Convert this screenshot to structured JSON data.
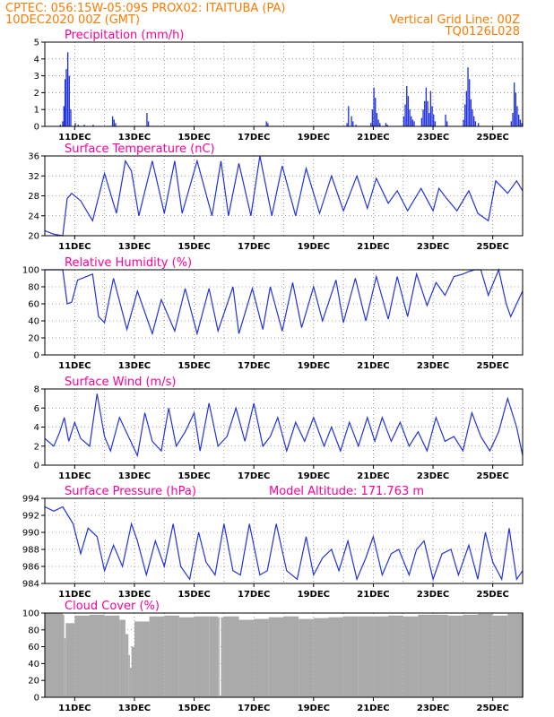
{
  "header": {
    "line1_left": "CPTEC:   056:15W-05:09S   PROX02: ITAITUBA (PA)",
    "line2_left": "10DEC2020 00Z (GMT)",
    "line2_right": "Vertical Grid Line: 00Z",
    "line3_right": "TQ0126L028"
  },
  "colors": {
    "header": "#ff7b00",
    "panel_title": "#ff0099",
    "series": "#2233dd",
    "cloud": "#aaaaaa",
    "grid": "#555555"
  },
  "x_tick_labels": [
    "11DEC",
    "13DEC",
    "15DEC",
    "17DEC",
    "19DEC",
    "21DEC",
    "23DEC",
    "25DEC"
  ],
  "chart_data": [
    {
      "type": "bar",
      "title": "Precipitation (mm/h)",
      "x_unit": "days since 10DEC2020 00Z",
      "ylim": [
        0,
        5
      ],
      "yticks": [
        0,
        1,
        2,
        3,
        4,
        5
      ],
      "x": [
        0.5,
        0.58,
        0.62,
        0.66,
        0.7,
        0.75,
        0.8,
        0.85,
        1.0,
        1.1,
        1.3,
        1.6,
        2.25,
        2.3,
        2.35,
        3.4,
        3.45,
        7.4,
        7.45,
        10.1,
        10.15,
        10.25,
        10.3,
        10.4,
        10.9,
        10.95,
        11.0,
        11.05,
        11.1,
        11.15,
        11.2,
        11.4,
        11.45,
        12.0,
        12.05,
        12.1,
        12.15,
        12.2,
        12.25,
        12.3,
        12.35,
        12.6,
        12.65,
        12.7,
        12.75,
        12.8,
        12.85,
        12.9,
        12.95,
        13.0,
        13.05,
        13.4,
        13.45,
        14.0,
        14.05,
        14.1,
        14.15,
        14.2,
        14.25,
        14.3,
        14.35,
        14.4,
        14.5,
        15.6,
        15.65,
        15.7,
        15.75,
        15.8,
        15.85,
        15.9,
        15.95
      ],
      "values": [
        0.1,
        0.3,
        1.2,
        2.8,
        3.4,
        4.4,
        3.0,
        1.0,
        0.2,
        0.1,
        0.1,
        0.1,
        0.6,
        0.4,
        0.2,
        0.8,
        0.3,
        0.3,
        0.2,
        0.2,
        1.2,
        0.6,
        0.3,
        0.1,
        0.2,
        1.0,
        2.3,
        1.7,
        0.8,
        0.4,
        0.2,
        0.2,
        0.1,
        0.6,
        1.3,
        2.4,
        1.8,
        1.0,
        0.6,
        0.4,
        0.3,
        0.5,
        1.0,
        1.5,
        2.3,
        1.5,
        0.8,
        2.1,
        1.2,
        0.7,
        0.3,
        0.7,
        0.3,
        0.4,
        1.3,
        2.1,
        3.5,
        2.8,
        1.6,
        1.0,
        0.6,
        0.3,
        0.2,
        0.3,
        0.8,
        2.6,
        2.0,
        1.2,
        0.7,
        0.4,
        0.2
      ]
    },
    {
      "type": "line",
      "title": "Surface Temperature (nC)",
      "x_unit": "days since 10DEC2020 00Z",
      "ylim": [
        20,
        36
      ],
      "yticks": [
        20,
        24,
        28,
        32,
        36
      ],
      "x": [
        0,
        0.3,
        0.6,
        0.75,
        0.9,
        1.2,
        1.6,
        2.0,
        2.4,
        2.7,
        2.9,
        3.15,
        3.6,
        4.0,
        4.35,
        4.6,
        5.1,
        5.6,
        5.9,
        6.15,
        6.5,
        6.9,
        7.2,
        7.6,
        7.95,
        8.4,
        8.75,
        9.2,
        9.6,
        10.0,
        10.45,
        10.8,
        11.1,
        11.5,
        11.8,
        12.15,
        12.6,
        13.0,
        13.2,
        13.45,
        13.8,
        14.2,
        14.5,
        14.85,
        15.1,
        15.5,
        15.8,
        16.0
      ],
      "values": [
        21.0,
        20.3,
        20.0,
        27.5,
        28.5,
        27.0,
        23.0,
        32.5,
        24.5,
        35.0,
        33.0,
        24.0,
        35.0,
        24.5,
        35.0,
        24.5,
        35.0,
        24.0,
        35.0,
        24.0,
        34.5,
        24.0,
        36.0,
        24.0,
        34.0,
        24.0,
        33.5,
        24.5,
        32.0,
        25.0,
        32.0,
        25.5,
        31.5,
        26.5,
        29.0,
        25.0,
        29.5,
        25.0,
        29.5,
        27.5,
        25.0,
        29.0,
        24.5,
        23.0,
        31.0,
        28.5,
        31.0,
        29.0
      ]
    },
    {
      "type": "line",
      "title": "Relative Humidity (%)",
      "x_unit": "days since 10DEC2020 00Z",
      "ylim": [
        0,
        100
      ],
      "yticks": [
        0,
        20,
        40,
        60,
        80,
        100
      ],
      "x": [
        0,
        0.6,
        0.75,
        0.9,
        1.1,
        1.6,
        1.8,
        2.0,
        2.3,
        2.75,
        3.1,
        3.6,
        3.9,
        4.35,
        4.7,
        5.1,
        5.5,
        5.8,
        6.3,
        6.5,
        6.95,
        7.3,
        7.55,
        7.95,
        8.3,
        8.6,
        9.0,
        9.3,
        9.75,
        10.0,
        10.4,
        10.75,
        11.1,
        11.5,
        11.8,
        12.15,
        12.45,
        12.8,
        13.1,
        13.4,
        13.7,
        14.0,
        14.2,
        14.4,
        14.6,
        14.85,
        15.2,
        15.45,
        15.6,
        15.8,
        16.0
      ],
      "values": [
        100,
        100,
        60,
        62,
        88,
        95,
        45,
        38,
        90,
        30,
        75,
        25,
        65,
        28,
        78,
        25,
        78,
        28,
        80,
        25,
        78,
        30,
        80,
        28,
        85,
        32,
        80,
        40,
        88,
        38,
        90,
        40,
        92,
        42,
        92,
        45,
        95,
        58,
        85,
        70,
        92,
        95,
        98,
        100,
        100,
        70,
        100,
        60,
        45,
        60,
        75
      ]
    },
    {
      "type": "line",
      "title": "Surface Wind (m/s)",
      "x_unit": "days since 10DEC2020 00Z",
      "ylim": [
        0,
        8
      ],
      "yticks": [
        0,
        2,
        4,
        6,
        8
      ],
      "x": [
        0,
        0.3,
        0.5,
        0.65,
        0.8,
        1.0,
        1.2,
        1.5,
        1.75,
        2.0,
        2.2,
        2.5,
        2.8,
        3.1,
        3.35,
        3.6,
        3.9,
        4.15,
        4.4,
        4.7,
        5.0,
        5.2,
        5.5,
        5.8,
        6.1,
        6.4,
        6.7,
        7.0,
        7.3,
        7.55,
        7.8,
        8.1,
        8.4,
        8.7,
        9.0,
        9.35,
        9.6,
        9.9,
        10.2,
        10.5,
        10.8,
        11.05,
        11.3,
        11.6,
        11.9,
        12.2,
        12.5,
        12.8,
        13.1,
        13.4,
        13.7,
        14.0,
        14.3,
        14.6,
        14.9,
        15.2,
        15.5,
        15.8,
        16.0
      ],
      "values": [
        2.8,
        2.0,
        3.5,
        5.0,
        2.5,
        4.5,
        2.8,
        2.0,
        7.5,
        3.0,
        1.5,
        5.0,
        3.0,
        1.0,
        5.5,
        2.5,
        1.5,
        6.0,
        2.0,
        3.5,
        5.5,
        1.5,
        6.5,
        2.0,
        3.0,
        6.0,
        2.5,
        6.5,
        2.0,
        3.0,
        5.0,
        1.5,
        4.5,
        2.5,
        5.0,
        2.0,
        4.0,
        1.5,
        4.5,
        2.0,
        5.0,
        2.5,
        5.0,
        2.5,
        4.5,
        2.0,
        3.5,
        1.5,
        5.0,
        2.5,
        3.0,
        1.5,
        5.5,
        3.0,
        1.5,
        3.5,
        7.0,
        4.0,
        1.0
      ]
    },
    {
      "type": "line",
      "title": "Surface Pressure (hPa)",
      "annotation": "Model Altitude: 171.763 m",
      "x_unit": "days since 10DEC2020 00Z",
      "ylim": [
        984,
        994
      ],
      "yticks": [
        984,
        986,
        988,
        990,
        992,
        994
      ],
      "x": [
        0,
        0.3,
        0.6,
        0.95,
        1.2,
        1.45,
        1.75,
        2.0,
        2.3,
        2.6,
        2.9,
        3.1,
        3.4,
        3.7,
        4.0,
        4.3,
        4.55,
        4.85,
        5.15,
        5.4,
        5.7,
        6.0,
        6.3,
        6.55,
        6.85,
        7.2,
        7.45,
        7.75,
        8.1,
        8.45,
        8.75,
        9.0,
        9.3,
        9.6,
        9.85,
        10.15,
        10.45,
        10.75,
        11.0,
        11.3,
        11.6,
        11.85,
        12.2,
        12.45,
        12.7,
        13.0,
        13.3,
        13.6,
        13.85,
        14.2,
        14.5,
        14.75,
        15.0,
        15.3,
        15.55,
        15.8,
        16.0
      ],
      "values": [
        993,
        992.5,
        993,
        991,
        987.5,
        990.5,
        989.5,
        985.5,
        988.5,
        986,
        991,
        989,
        985,
        989,
        986,
        991,
        986,
        984.5,
        990,
        986.5,
        985,
        991,
        985.5,
        985,
        991,
        985,
        985.5,
        991,
        985.5,
        984.5,
        989.5,
        985,
        987,
        988,
        985.5,
        989,
        984.5,
        987,
        989.5,
        985,
        987.5,
        988,
        985,
        988,
        989,
        984.5,
        987.5,
        988,
        985,
        988.5,
        984.5,
        990,
        986.5,
        984.5,
        990.5,
        984.5,
        985.5
      ]
    },
    {
      "type": "bar",
      "title": "Cloud Cover (%)",
      "x_unit": "days since 10DEC2020 00Z",
      "ylim": [
        0,
        100
      ],
      "yticks": [
        0,
        20,
        40,
        60,
        80,
        100
      ],
      "x": [
        0,
        0.6,
        0.65,
        0.7,
        1.0,
        1.5,
        2.0,
        2.5,
        2.7,
        2.8,
        2.85,
        2.9,
        3.0,
        3.5,
        4.0,
        4.5,
        5.0,
        5.5,
        5.8,
        5.85,
        5.9,
        6.0,
        6.5,
        7.0,
        7.5,
        8.0,
        8.5,
        9.0,
        9.5,
        10.0,
        10.5,
        11.0,
        11.5,
        12.0,
        12.5,
        13.0,
        13.5,
        14.0,
        14.5,
        15.0,
        15.5,
        16.0
      ],
      "values": [
        100,
        98,
        70,
        88,
        97,
        98,
        97,
        92,
        75,
        50,
        35,
        60,
        90,
        96,
        97,
        95,
        96,
        96,
        95,
        2,
        95,
        96,
        92,
        93,
        95,
        96,
        93,
        94,
        95,
        96,
        96,
        96,
        97,
        96,
        98,
        98,
        97,
        98,
        99,
        97,
        99,
        100
      ]
    }
  ]
}
